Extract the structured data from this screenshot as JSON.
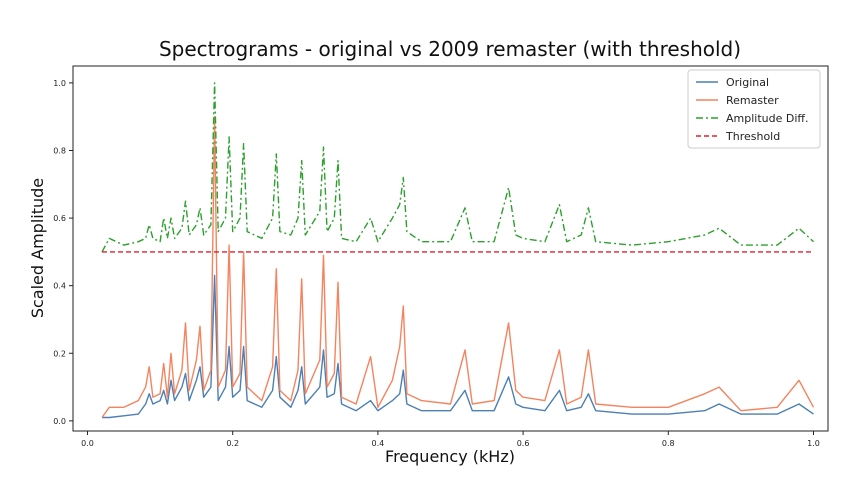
{
  "chart_data": {
    "type": "line",
    "title": "Spectrograms - original vs 2009 remaster (with threshold)",
    "xlabel": "Frequency (kHz)",
    "ylabel": "Scaled Amplitude",
    "xlim": [
      -0.02,
      1.02
    ],
    "ylim": [
      -0.03,
      1.05
    ],
    "xticks": [
      0.0,
      0.2,
      0.4,
      0.6,
      0.8,
      1.0
    ],
    "xtick_labels": [
      "0.0",
      "0.2",
      "0.4",
      "0.6",
      "0.8",
      "1.0"
    ],
    "yticks": [
      0.0,
      0.2,
      0.4,
      0.6,
      0.8,
      1.0
    ],
    "ytick_labels": [
      "0.0",
      "0.2",
      "0.4",
      "0.6",
      "0.8",
      "1.0"
    ],
    "grid": false,
    "legend_position": "top-right",
    "series": [
      {
        "name": "Original",
        "color": "#4c7fb4",
        "style": "solid",
        "x": [
          0.02,
          0.03,
          0.05,
          0.07,
          0.08,
          0.085,
          0.09,
          0.1,
          0.105,
          0.11,
          0.115,
          0.12,
          0.13,
          0.135,
          0.14,
          0.15,
          0.155,
          0.16,
          0.17,
          0.175,
          0.18,
          0.19,
          0.195,
          0.2,
          0.21,
          0.215,
          0.22,
          0.24,
          0.255,
          0.26,
          0.265,
          0.28,
          0.29,
          0.295,
          0.3,
          0.32,
          0.325,
          0.33,
          0.34,
          0.345,
          0.35,
          0.37,
          0.39,
          0.4,
          0.42,
          0.43,
          0.435,
          0.44,
          0.46,
          0.5,
          0.52,
          0.53,
          0.56,
          0.58,
          0.59,
          0.6,
          0.63,
          0.65,
          0.66,
          0.68,
          0.69,
          0.7,
          0.75,
          0.8,
          0.85,
          0.87,
          0.9,
          0.95,
          0.98,
          1.0
        ],
        "y": [
          0.01,
          0.01,
          0.015,
          0.02,
          0.05,
          0.08,
          0.05,
          0.06,
          0.09,
          0.05,
          0.12,
          0.06,
          0.1,
          0.14,
          0.06,
          0.12,
          0.16,
          0.07,
          0.1,
          0.43,
          0.06,
          0.1,
          0.22,
          0.07,
          0.09,
          0.22,
          0.06,
          0.04,
          0.09,
          0.19,
          0.07,
          0.04,
          0.09,
          0.16,
          0.05,
          0.1,
          0.21,
          0.07,
          0.08,
          0.17,
          0.05,
          0.03,
          0.06,
          0.03,
          0.06,
          0.08,
          0.15,
          0.05,
          0.03,
          0.03,
          0.09,
          0.03,
          0.03,
          0.13,
          0.05,
          0.04,
          0.03,
          0.09,
          0.03,
          0.04,
          0.08,
          0.03,
          0.02,
          0.02,
          0.03,
          0.05,
          0.02,
          0.02,
          0.05,
          0.02
        ]
      },
      {
        "name": "Remaster",
        "color": "#f4845f",
        "style": "solid",
        "x": [
          0.02,
          0.03,
          0.05,
          0.07,
          0.08,
          0.085,
          0.09,
          0.1,
          0.105,
          0.11,
          0.115,
          0.12,
          0.13,
          0.135,
          0.14,
          0.15,
          0.155,
          0.16,
          0.17,
          0.175,
          0.18,
          0.19,
          0.195,
          0.2,
          0.21,
          0.215,
          0.22,
          0.24,
          0.255,
          0.26,
          0.265,
          0.28,
          0.29,
          0.295,
          0.3,
          0.32,
          0.325,
          0.33,
          0.34,
          0.345,
          0.35,
          0.37,
          0.39,
          0.4,
          0.42,
          0.43,
          0.435,
          0.44,
          0.46,
          0.5,
          0.52,
          0.53,
          0.56,
          0.58,
          0.59,
          0.6,
          0.63,
          0.65,
          0.66,
          0.68,
          0.69,
          0.7,
          0.75,
          0.8,
          0.85,
          0.87,
          0.9,
          0.95,
          0.98,
          1.0
        ],
        "y": [
          0.01,
          0.04,
          0.04,
          0.06,
          0.1,
          0.16,
          0.07,
          0.08,
          0.17,
          0.07,
          0.2,
          0.08,
          0.15,
          0.29,
          0.09,
          0.18,
          0.28,
          0.09,
          0.15,
          0.9,
          0.1,
          0.15,
          0.52,
          0.1,
          0.14,
          0.5,
          0.1,
          0.06,
          0.16,
          0.45,
          0.09,
          0.06,
          0.15,
          0.42,
          0.08,
          0.18,
          0.49,
          0.1,
          0.14,
          0.41,
          0.07,
          0.05,
          0.19,
          0.04,
          0.12,
          0.22,
          0.34,
          0.08,
          0.06,
          0.05,
          0.21,
          0.05,
          0.06,
          0.29,
          0.09,
          0.07,
          0.06,
          0.21,
          0.05,
          0.07,
          0.21,
          0.05,
          0.04,
          0.04,
          0.08,
          0.1,
          0.03,
          0.04,
          0.12,
          0.04
        ]
      },
      {
        "name": "Amplitude Diff.",
        "color": "#2ca02c",
        "style": "dashdot",
        "x": [
          0.02,
          0.03,
          0.05,
          0.07,
          0.08,
          0.085,
          0.09,
          0.1,
          0.105,
          0.11,
          0.115,
          0.12,
          0.13,
          0.135,
          0.14,
          0.15,
          0.155,
          0.16,
          0.17,
          0.175,
          0.18,
          0.19,
          0.195,
          0.2,
          0.21,
          0.215,
          0.22,
          0.24,
          0.255,
          0.26,
          0.265,
          0.28,
          0.29,
          0.295,
          0.3,
          0.32,
          0.325,
          0.33,
          0.34,
          0.345,
          0.35,
          0.37,
          0.39,
          0.4,
          0.42,
          0.43,
          0.435,
          0.44,
          0.46,
          0.5,
          0.52,
          0.53,
          0.56,
          0.58,
          0.59,
          0.6,
          0.63,
          0.65,
          0.66,
          0.68,
          0.69,
          0.7,
          0.75,
          0.8,
          0.85,
          0.87,
          0.9,
          0.95,
          0.98,
          1.0
        ],
        "y": [
          0.5,
          0.54,
          0.52,
          0.53,
          0.54,
          0.58,
          0.54,
          0.53,
          0.6,
          0.54,
          0.6,
          0.54,
          0.57,
          0.65,
          0.55,
          0.58,
          0.63,
          0.55,
          0.58,
          1.0,
          0.56,
          0.6,
          0.84,
          0.56,
          0.6,
          0.82,
          0.56,
          0.54,
          0.6,
          0.79,
          0.56,
          0.55,
          0.6,
          0.77,
          0.55,
          0.62,
          0.81,
          0.56,
          0.6,
          0.77,
          0.54,
          0.53,
          0.6,
          0.53,
          0.6,
          0.64,
          0.72,
          0.56,
          0.53,
          0.53,
          0.63,
          0.53,
          0.53,
          0.69,
          0.55,
          0.54,
          0.53,
          0.64,
          0.53,
          0.55,
          0.63,
          0.53,
          0.52,
          0.53,
          0.55,
          0.57,
          0.52,
          0.52,
          0.57,
          0.53
        ]
      },
      {
        "name": "Threshold",
        "color": "#e0202a",
        "style": "dashed",
        "x": [
          0.02,
          1.0
        ],
        "y": [
          0.5,
          0.5
        ]
      }
    ]
  }
}
